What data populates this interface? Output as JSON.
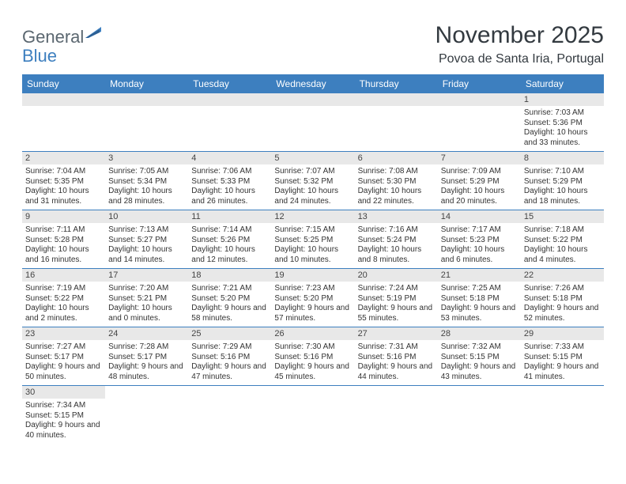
{
  "logo": {
    "text1": "General",
    "text2": "Blue"
  },
  "title": "November 2025",
  "location": "Povoa de Santa Iria, Portugal",
  "colors": {
    "header_bg": "#3d7fbf",
    "header_text": "#ffffff",
    "cell_border": "#3d7fbf",
    "daynum_bg": "#e8e8e8",
    "page_bg": "#ffffff",
    "title_color": "#333a40"
  },
  "fonts": {
    "title_size": 30,
    "location_size": 16,
    "header_size": 12,
    "cell_size": 10,
    "day_size": 11
  },
  "days_of_week": [
    "Sunday",
    "Monday",
    "Tuesday",
    "Wednesday",
    "Thursday",
    "Friday",
    "Saturday"
  ],
  "weeks": [
    [
      {
        "blank": true
      },
      {
        "blank": true
      },
      {
        "blank": true
      },
      {
        "blank": true
      },
      {
        "blank": true
      },
      {
        "blank": true
      },
      {
        "day": "1",
        "sunrise": "Sunrise: 7:03 AM",
        "sunset": "Sunset: 5:36 PM",
        "daylight": "Daylight: 10 hours and 33 minutes."
      }
    ],
    [
      {
        "day": "2",
        "sunrise": "Sunrise: 7:04 AM",
        "sunset": "Sunset: 5:35 PM",
        "daylight": "Daylight: 10 hours and 31 minutes."
      },
      {
        "day": "3",
        "sunrise": "Sunrise: 7:05 AM",
        "sunset": "Sunset: 5:34 PM",
        "daylight": "Daylight: 10 hours and 28 minutes."
      },
      {
        "day": "4",
        "sunrise": "Sunrise: 7:06 AM",
        "sunset": "Sunset: 5:33 PM",
        "daylight": "Daylight: 10 hours and 26 minutes."
      },
      {
        "day": "5",
        "sunrise": "Sunrise: 7:07 AM",
        "sunset": "Sunset: 5:32 PM",
        "daylight": "Daylight: 10 hours and 24 minutes."
      },
      {
        "day": "6",
        "sunrise": "Sunrise: 7:08 AM",
        "sunset": "Sunset: 5:30 PM",
        "daylight": "Daylight: 10 hours and 22 minutes."
      },
      {
        "day": "7",
        "sunrise": "Sunrise: 7:09 AM",
        "sunset": "Sunset: 5:29 PM",
        "daylight": "Daylight: 10 hours and 20 minutes."
      },
      {
        "day": "8",
        "sunrise": "Sunrise: 7:10 AM",
        "sunset": "Sunset: 5:29 PM",
        "daylight": "Daylight: 10 hours and 18 minutes."
      }
    ],
    [
      {
        "day": "9",
        "sunrise": "Sunrise: 7:11 AM",
        "sunset": "Sunset: 5:28 PM",
        "daylight": "Daylight: 10 hours and 16 minutes."
      },
      {
        "day": "10",
        "sunrise": "Sunrise: 7:13 AM",
        "sunset": "Sunset: 5:27 PM",
        "daylight": "Daylight: 10 hours and 14 minutes."
      },
      {
        "day": "11",
        "sunrise": "Sunrise: 7:14 AM",
        "sunset": "Sunset: 5:26 PM",
        "daylight": "Daylight: 10 hours and 12 minutes."
      },
      {
        "day": "12",
        "sunrise": "Sunrise: 7:15 AM",
        "sunset": "Sunset: 5:25 PM",
        "daylight": "Daylight: 10 hours and 10 minutes."
      },
      {
        "day": "13",
        "sunrise": "Sunrise: 7:16 AM",
        "sunset": "Sunset: 5:24 PM",
        "daylight": "Daylight: 10 hours and 8 minutes."
      },
      {
        "day": "14",
        "sunrise": "Sunrise: 7:17 AM",
        "sunset": "Sunset: 5:23 PM",
        "daylight": "Daylight: 10 hours and 6 minutes."
      },
      {
        "day": "15",
        "sunrise": "Sunrise: 7:18 AM",
        "sunset": "Sunset: 5:22 PM",
        "daylight": "Daylight: 10 hours and 4 minutes."
      }
    ],
    [
      {
        "day": "16",
        "sunrise": "Sunrise: 7:19 AM",
        "sunset": "Sunset: 5:22 PM",
        "daylight": "Daylight: 10 hours and 2 minutes."
      },
      {
        "day": "17",
        "sunrise": "Sunrise: 7:20 AM",
        "sunset": "Sunset: 5:21 PM",
        "daylight": "Daylight: 10 hours and 0 minutes."
      },
      {
        "day": "18",
        "sunrise": "Sunrise: 7:21 AM",
        "sunset": "Sunset: 5:20 PM",
        "daylight": "Daylight: 9 hours and 58 minutes."
      },
      {
        "day": "19",
        "sunrise": "Sunrise: 7:23 AM",
        "sunset": "Sunset: 5:20 PM",
        "daylight": "Daylight: 9 hours and 57 minutes."
      },
      {
        "day": "20",
        "sunrise": "Sunrise: 7:24 AM",
        "sunset": "Sunset: 5:19 PM",
        "daylight": "Daylight: 9 hours and 55 minutes."
      },
      {
        "day": "21",
        "sunrise": "Sunrise: 7:25 AM",
        "sunset": "Sunset: 5:18 PM",
        "daylight": "Daylight: 9 hours and 53 minutes."
      },
      {
        "day": "22",
        "sunrise": "Sunrise: 7:26 AM",
        "sunset": "Sunset: 5:18 PM",
        "daylight": "Daylight: 9 hours and 52 minutes."
      }
    ],
    [
      {
        "day": "23",
        "sunrise": "Sunrise: 7:27 AM",
        "sunset": "Sunset: 5:17 PM",
        "daylight": "Daylight: 9 hours and 50 minutes."
      },
      {
        "day": "24",
        "sunrise": "Sunrise: 7:28 AM",
        "sunset": "Sunset: 5:17 PM",
        "daylight": "Daylight: 9 hours and 48 minutes."
      },
      {
        "day": "25",
        "sunrise": "Sunrise: 7:29 AM",
        "sunset": "Sunset: 5:16 PM",
        "daylight": "Daylight: 9 hours and 47 minutes."
      },
      {
        "day": "26",
        "sunrise": "Sunrise: 7:30 AM",
        "sunset": "Sunset: 5:16 PM",
        "daylight": "Daylight: 9 hours and 45 minutes."
      },
      {
        "day": "27",
        "sunrise": "Sunrise: 7:31 AM",
        "sunset": "Sunset: 5:16 PM",
        "daylight": "Daylight: 9 hours and 44 minutes."
      },
      {
        "day": "28",
        "sunrise": "Sunrise: 7:32 AM",
        "sunset": "Sunset: 5:15 PM",
        "daylight": "Daylight: 9 hours and 43 minutes."
      },
      {
        "day": "29",
        "sunrise": "Sunrise: 7:33 AM",
        "sunset": "Sunset: 5:15 PM",
        "daylight": "Daylight: 9 hours and 41 minutes."
      }
    ],
    [
      {
        "day": "30",
        "sunrise": "Sunrise: 7:34 AM",
        "sunset": "Sunset: 5:15 PM",
        "daylight": "Daylight: 9 hours and 40 minutes."
      },
      {
        "blank": true
      },
      {
        "blank": true
      },
      {
        "blank": true
      },
      {
        "blank": true
      },
      {
        "blank": true
      },
      {
        "blank": true
      }
    ]
  ]
}
